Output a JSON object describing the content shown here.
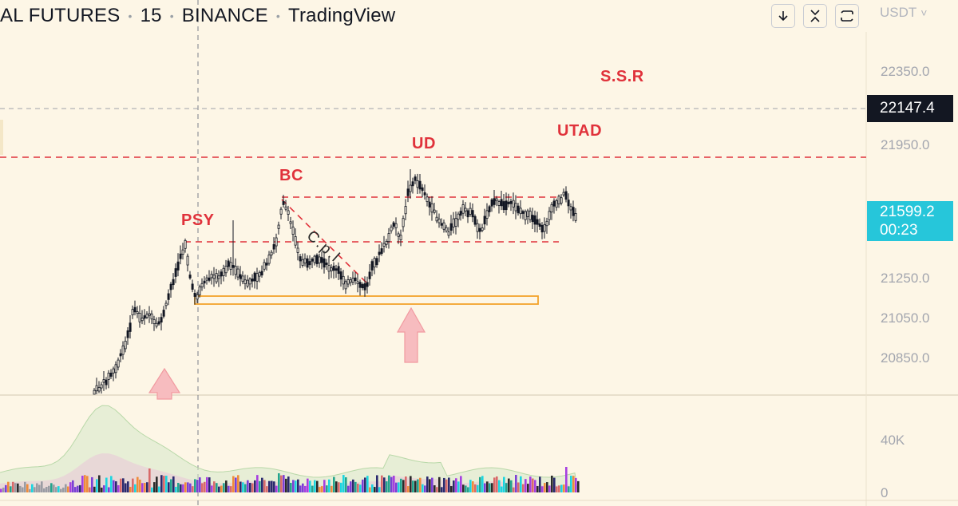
{
  "header": {
    "symbol_fragment": "AL FUTURES",
    "interval": "15",
    "exchange": "BINANCE",
    "source": "TradingView"
  },
  "toolbar": {
    "buttons": [
      {
        "name": "download",
        "icon": "arrow-down-icon"
      },
      {
        "name": "fullscreen",
        "icon": "collapse-icon"
      },
      {
        "name": "snapshot",
        "icon": "refresh-frame-icon"
      }
    ]
  },
  "price_axis": {
    "currency": "USDT",
    "currency_caret": "˅",
    "labels": [
      "22350.0",
      "21950.0",
      "21250.0",
      "21050.0",
      "20850.0"
    ],
    "current_price": "22147.4",
    "last_price": "21599.2",
    "countdown": "00:23"
  },
  "volume_axis": {
    "labels": [
      "40K",
      "0"
    ]
  },
  "annotations": {
    "ssr": "S.S.R",
    "utad": "UTAD",
    "ud": "UD",
    "bc": "BC",
    "psy": "PSY",
    "cpl": "C.p.l"
  },
  "colors": {
    "background": "#fdf6e6",
    "candle": "#131722",
    "annotation_text": "#e0323b",
    "dashed_level": "#e0323b",
    "support_box": "#f3a32b",
    "arrow_fill": "#f7bcbf",
    "last_price_tag": "#26c6da",
    "current_price_tag": "#131722",
    "volume_colors": [
      "#1ad6e0",
      "#7b3fd6",
      "#2a2a6e",
      "#d86a6a",
      "#22a48d",
      "#f08c3a",
      "#2b2b2b",
      "#a63fe0"
    ]
  }
}
